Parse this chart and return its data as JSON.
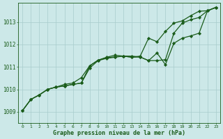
{
  "background_color": "#cce8e8",
  "line_color": "#1a5c1a",
  "grid_color": "#a8cccc",
  "text_color": "#1a5c1a",
  "xlabel": "Graphe pression niveau de la mer (hPa)",
  "xlim": [
    -0.5,
    23.5
  ],
  "ylim": [
    1008.5,
    1013.85
  ],
  "yticks": [
    1009,
    1010,
    1011,
    1012,
    1013
  ],
  "xticks": [
    0,
    1,
    2,
    3,
    4,
    5,
    6,
    7,
    8,
    9,
    10,
    11,
    12,
    13,
    14,
    15,
    16,
    17,
    18,
    19,
    20,
    21,
    22,
    23
  ],
  "series1_x": [
    0,
    1,
    2,
    3,
    4,
    5,
    6,
    7,
    8,
    9,
    10,
    11,
    12,
    13,
    14,
    15,
    16,
    17,
    18,
    19,
    20,
    21,
    22,
    23
  ],
  "series1_y": [
    1009.05,
    1009.55,
    1009.75,
    1010.0,
    1010.1,
    1010.15,
    1010.22,
    1010.28,
    1011.05,
    1011.3,
    1011.4,
    1011.45,
    1011.48,
    1011.43,
    1011.44,
    1011.28,
    1011.28,
    1011.32,
    1012.5,
    1012.95,
    1013.1,
    1013.2,
    1013.5,
    1013.65
  ],
  "series2_x": [
    0,
    1,
    2,
    3,
    4,
    5,
    6,
    7,
    8,
    9,
    10,
    11,
    12,
    13,
    14,
    15,
    16,
    17,
    18,
    19,
    20,
    21,
    22,
    23
  ],
  "series2_y": [
    1009.05,
    1009.55,
    1009.75,
    1010.0,
    1010.1,
    1010.15,
    1010.22,
    1010.28,
    1010.95,
    1011.28,
    1011.38,
    1011.43,
    1011.48,
    1011.48,
    1011.44,
    1011.28,
    1011.62,
    1011.1,
    1012.05,
    1012.28,
    1012.38,
    1012.5,
    1013.5,
    1013.65
  ],
  "series3_x": [
    0,
    1,
    2,
    3,
    4,
    5,
    6,
    7,
    8,
    9,
    10,
    11,
    12,
    13,
    14,
    15,
    16,
    17,
    18,
    19,
    20,
    21,
    22,
    23
  ],
  "series3_y": [
    1009.05,
    1009.55,
    1009.75,
    1010.0,
    1010.1,
    1010.22,
    1010.28,
    1010.52,
    1011.05,
    1011.3,
    1011.43,
    1011.52,
    1011.48,
    1011.43,
    1011.48,
    1012.28,
    1012.12,
    1012.58,
    1012.95,
    1013.05,
    1013.28,
    1013.48,
    1013.5,
    1013.65
  ],
  "marker_style": "D",
  "marker_size": 2.2,
  "line_width": 0.9
}
